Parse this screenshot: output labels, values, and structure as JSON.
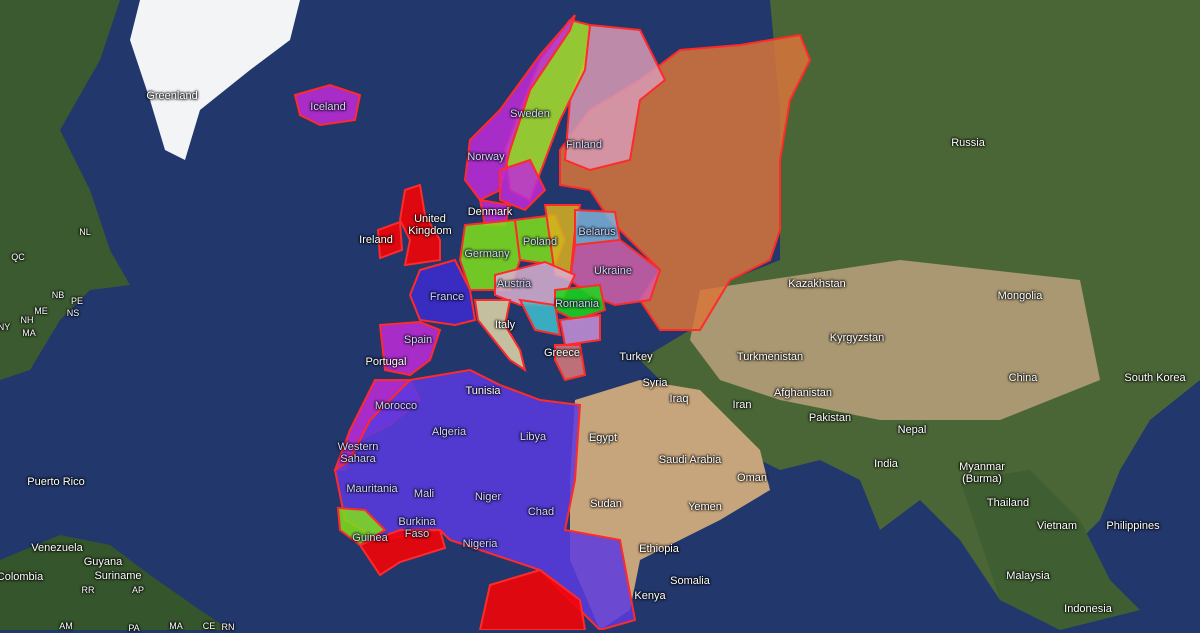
{
  "map": {
    "colors": {
      "ocean": "#22376b",
      "land": "#3d5a2a",
      "desert": "#b79a6e",
      "border_highlight": "#ff2a2a"
    },
    "countries_highlighted": [
      {
        "name": "Iceland",
        "color": "#c02ad8"
      },
      {
        "name": "Norway",
        "color": "#c02ad8"
      },
      {
        "name": "Sweden",
        "color": "#a8e02a"
      },
      {
        "name": "Finland",
        "color": "#d89ab4"
      },
      {
        "name": "Russia",
        "color": "#d8743a"
      },
      {
        "name": "United Kingdom",
        "color": "#ff0000"
      },
      {
        "name": "Ireland",
        "color": "#ff0000"
      },
      {
        "name": "Germany",
        "color": "#7fe01a"
      },
      {
        "name": "Poland",
        "color": "#7fe01a"
      },
      {
        "name": "Belarus",
        "color": "#7ab0d8"
      },
      {
        "name": "Ukraine",
        "color": "#d060a8"
      },
      {
        "name": "France",
        "color": "#3c2ad0"
      },
      {
        "name": "Austria",
        "color": "#d8b0d0"
      },
      {
        "name": "Romania",
        "color": "#1ad81a"
      },
      {
        "name": "Italy",
        "color": "#e0d8a8"
      },
      {
        "name": "Spain",
        "color": "#c02ad8"
      },
      {
        "name": "Portugal",
        "color": "#c02ad8"
      },
      {
        "name": "Greece",
        "color": "#d87a7a"
      },
      {
        "name": "Morocco",
        "color": "#c02ad8"
      },
      {
        "name": "Algeria",
        "color": "#5a3ae0"
      },
      {
        "name": "Nigeria",
        "color": "#3c2ad0"
      },
      {
        "name": "Guinea",
        "color": "#7fe01a"
      }
    ],
    "labels": {
      "greenland": "Greenland",
      "iceland": "Iceland",
      "norway": "Norway",
      "sweden": "Sweden",
      "finland": "Finland",
      "russia": "Russia",
      "denmark": "Denmark",
      "uk": "United Kingdom",
      "ireland": "Ireland",
      "germany": "Germany",
      "poland": "Poland",
      "belarus": "Belarus",
      "ukraine": "Ukraine",
      "france": "France",
      "austria": "Austria",
      "romania": "Romania",
      "italy": "Italy",
      "spain": "Spain",
      "portugal": "Portugal",
      "greece": "Greece",
      "turkey": "Turkey",
      "syria": "Syria",
      "iraq": "Iraq",
      "iran": "Iran",
      "turkmenistan": "Turkmenistan",
      "kyrgyzstan": "Kyrgyzstan",
      "kazakhstan": "Kazakhstan",
      "mongolia": "Mongolia",
      "china": "China",
      "south_korea": "South Korea",
      "afghanistan": "Afghanistan",
      "pakistan": "Pakistan",
      "nepal": "Nepal",
      "india": "India",
      "myanmar": "Myanmar\n(Burma)",
      "thailand": "Thailand",
      "vietnam": "Vietnam",
      "philippines": "Philippines",
      "malaysia": "Malaysia",
      "indonesia": "Indonesia",
      "tunisia": "Tunisia",
      "morocco": "Morocco",
      "algeria": "Algeria",
      "libya": "Libya",
      "egypt": "Egypt",
      "saudi_arabia": "Saudi Arabia",
      "oman": "Oman",
      "yemen": "Yemen",
      "sudan": "Sudan",
      "ethiopia": "Ethiopia",
      "somalia": "Somalia",
      "kenya": "Kenya",
      "western_sahara": "Western\nSahara",
      "mauritania": "Mauritania",
      "mali": "Mali",
      "niger": "Niger",
      "chad": "Chad",
      "burkina_faso": "Burkina\nFaso",
      "guinea": "Guinea",
      "nigeria": "Nigeria",
      "puerto_rico": "Puerto Rico",
      "venezuela": "Venezuela",
      "guyana": "Guyana",
      "suriname": "Suriname",
      "colombia": "Colombia",
      "nl": "NL",
      "qc": "QC",
      "nb": "NB",
      "pe": "PE",
      "me": "ME",
      "ns": "NS",
      "nh": "NH",
      "ma_us": "MA",
      "ny": "NY",
      "rr": "RR",
      "ap": "AP",
      "am": "AM",
      "ma_br": "MA",
      "ce": "CE",
      "rn": "RN",
      "pa": "PA"
    }
  }
}
